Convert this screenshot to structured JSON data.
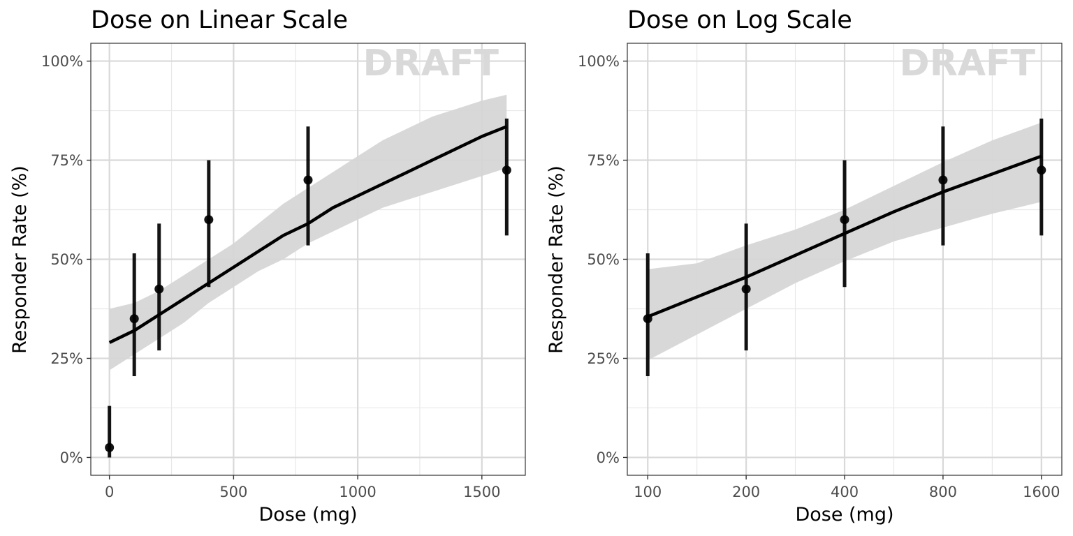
{
  "chart_data": [
    {
      "type": "scatter",
      "title": "Dose on Linear Scale",
      "xlabel": "Dose (mg)",
      "ylabel": "Responder Rate (%)",
      "x_scale": "linear",
      "xlim": [
        -75,
        1675
      ],
      "ylim": [
        -0.045,
        1.045
      ],
      "x_ticks": [
        0,
        500,
        1000,
        1500
      ],
      "x_tick_labels": [
        "0",
        "500",
        "1000",
        "1500"
      ],
      "x_minor_ticks": [
        250,
        750,
        1250
      ],
      "y_ticks": [
        0,
        0.25,
        0.5,
        0.75,
        1.0
      ],
      "y_tick_labels": [
        "0%",
        "25%",
        "50%",
        "75%",
        "100%"
      ],
      "y_minor_ticks": [
        0.125,
        0.375,
        0.625,
        0.875
      ],
      "grid": true,
      "watermark": "DRAFT",
      "series": [
        {
          "kind": "points_with_error_bars",
          "x": [
            0,
            100,
            200,
            400,
            800,
            1600
          ],
          "y": [
            0.025,
            0.35,
            0.425,
            0.6,
            0.7,
            0.725
          ],
          "y_low": [
            0.0,
            0.205,
            0.27,
            0.43,
            0.535,
            0.56
          ],
          "y_high": [
            0.13,
            0.515,
            0.59,
            0.75,
            0.835,
            0.855
          ],
          "color": "#000000"
        },
        {
          "kind": "fit_line_with_ribbon",
          "x": [
            0,
            100,
            200,
            300,
            400,
            500,
            600,
            700,
            800,
            900,
            1000,
            1100,
            1200,
            1300,
            1400,
            1500,
            1600
          ],
          "y": [
            0.29,
            0.32,
            0.36,
            0.4,
            0.44,
            0.48,
            0.52,
            0.56,
            0.59,
            0.63,
            0.66,
            0.69,
            0.72,
            0.75,
            0.78,
            0.81,
            0.835
          ],
          "lower": [
            0.22,
            0.26,
            0.3,
            0.34,
            0.39,
            0.43,
            0.47,
            0.5,
            0.54,
            0.57,
            0.6,
            0.63,
            0.65,
            0.67,
            0.69,
            0.71,
            0.73
          ],
          "upper": [
            0.375,
            0.39,
            0.42,
            0.46,
            0.5,
            0.54,
            0.59,
            0.64,
            0.68,
            0.72,
            0.76,
            0.8,
            0.83,
            0.86,
            0.88,
            0.9,
            0.915
          ],
          "color": "#000000",
          "ribbon_color": "#d6d6d6"
        }
      ]
    },
    {
      "type": "scatter",
      "title": "Dose on Log Scale",
      "xlabel": "Dose (mg)",
      "ylabel": "Responder Rate (%)",
      "x_scale": "log",
      "xlim": [
        86.6,
        1847
      ],
      "ylim": [
        -0.045,
        1.045
      ],
      "x_ticks": [
        100,
        200,
        400,
        800,
        1600
      ],
      "x_tick_labels": [
        "100",
        "200",
        "400",
        "800",
        "1600"
      ],
      "x_minor_ticks": [
        141.4,
        282.8,
        565.7,
        1131.4
      ],
      "y_ticks": [
        0,
        0.25,
        0.5,
        0.75,
        1.0
      ],
      "y_tick_labels": [
        "0%",
        "25%",
        "50%",
        "75%",
        "100%"
      ],
      "y_minor_ticks": [
        0.125,
        0.375,
        0.625,
        0.875
      ],
      "grid": true,
      "watermark": "DRAFT",
      "series": [
        {
          "kind": "points_with_error_bars",
          "x": [
            100,
            200,
            400,
            800,
            1600
          ],
          "y": [
            0.35,
            0.425,
            0.6,
            0.7,
            0.725
          ],
          "y_low": [
            0.205,
            0.27,
            0.43,
            0.535,
            0.56
          ],
          "y_high": [
            0.515,
            0.59,
            0.75,
            0.835,
            0.855
          ],
          "color": "#000000"
        },
        {
          "kind": "fit_line_with_ribbon",
          "x": [
            100,
            141.4,
            200,
            282.8,
            400,
            565.7,
            800,
            1131.4,
            1600
          ],
          "y": [
            0.355,
            0.405,
            0.455,
            0.51,
            0.565,
            0.62,
            0.67,
            0.715,
            0.76
          ],
          "lower": [
            0.245,
            0.31,
            0.375,
            0.44,
            0.495,
            0.545,
            0.58,
            0.615,
            0.645
          ],
          "upper": [
            0.475,
            0.49,
            0.535,
            0.575,
            0.625,
            0.685,
            0.745,
            0.8,
            0.845
          ],
          "color": "#000000",
          "ribbon_color": "#d6d6d6"
        }
      ]
    }
  ]
}
